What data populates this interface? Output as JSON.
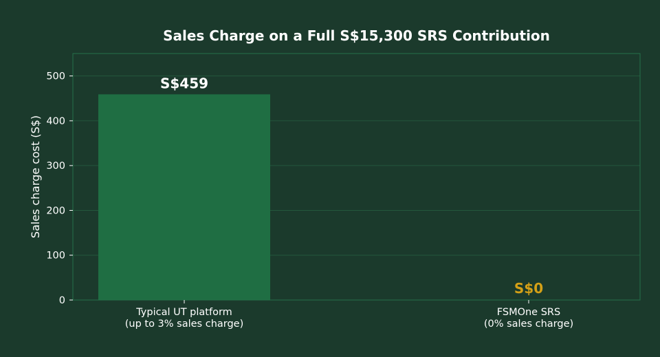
{
  "chart_data": {
    "type": "bar",
    "title": "Sales Charge on a Full S$15,300 SRS Contribution",
    "xlabel": "",
    "ylabel": "Sales charge cost (S$)",
    "categories": [
      [
        "Typical UT platform",
        "(up to 3% sales charge)"
      ],
      [
        "FSMOne SRS",
        "(0% sales charge)"
      ]
    ],
    "values": [
      459,
      0
    ],
    "value_labels": [
      "S$459",
      "S$0"
    ],
    "ylim": [
      0,
      550
    ],
    "yticks": [
      0,
      100,
      200,
      300,
      400,
      500
    ],
    "grid": true,
    "colors": {
      "background": "#1b3a2c",
      "bar": "#1f6e43",
      "zero_label": "#d4a017",
      "bar_label": "#ffffff",
      "frame": "#24704a",
      "grid": "#24573c",
      "text": "#ffffff"
    }
  }
}
